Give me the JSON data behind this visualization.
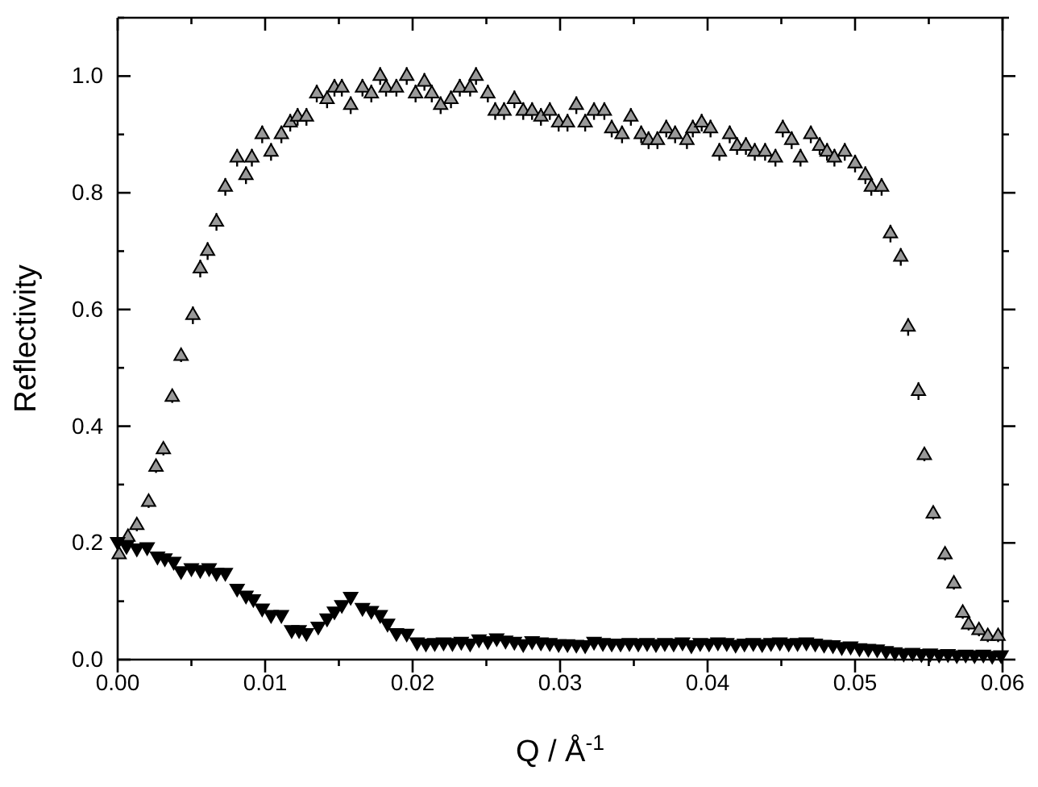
{
  "chart_data": {
    "type": "scatter",
    "xlabel": "Q / Å$^{-1}$",
    "ylabel": "Reflectivity",
    "xlim": [
      0,
      0.06
    ],
    "ylim": [
      0,
      1.1
    ],
    "xticks": [
      {
        "value": 0,
        "label": "0.00"
      },
      {
        "value": 0.005,
        "label": null
      },
      {
        "value": 0.01,
        "label": "0.01"
      },
      {
        "value": 0.015,
        "label": null
      },
      {
        "value": 0.02,
        "label": "0.02"
      },
      {
        "value": 0.025,
        "label": null
      },
      {
        "value": 0.03,
        "label": "0.03"
      },
      {
        "value": 0.035,
        "label": null
      },
      {
        "value": 0.04,
        "label": "0.04"
      },
      {
        "value": 0.045,
        "label": null
      },
      {
        "value": 0.05,
        "label": "0.05"
      },
      {
        "value": 0.055,
        "label": null
      },
      {
        "value": 0.06,
        "label": "0.06"
      }
    ],
    "yticks": [
      {
        "value": 0,
        "label": "0.0"
      },
      {
        "value": 0.1,
        "label": null
      },
      {
        "value": 0.2,
        "label": "0.2"
      },
      {
        "value": 0.3,
        "label": null
      },
      {
        "value": 0.4,
        "label": "0.4"
      },
      {
        "value": 0.5,
        "label": null
      },
      {
        "value": 0.6,
        "label": "0.6"
      },
      {
        "value": 0.7,
        "label": null
      },
      {
        "value": 0.8,
        "label": "0.8"
      },
      {
        "value": 0.9,
        "label": null
      },
      {
        "value": 1.0,
        "label": "1.0"
      },
      {
        "value": 1.1,
        "label": null
      }
    ],
    "grid": false,
    "series": [
      {
        "color": "#999999",
        "marker": "triangle",
        "x": [
          0.0001,
          0.0007,
          0.0013,
          0.0021,
          0.0026,
          0.0031,
          0.0037,
          0.0043,
          0.0051,
          0.0056,
          0.0061,
          0.0067,
          0.0073,
          0.0081,
          0.0087,
          0.0091,
          0.0098,
          0.0104,
          0.0111,
          0.0117,
          0.0122,
          0.0128,
          0.0135,
          0.0142,
          0.0147,
          0.0152,
          0.0158,
          0.0166,
          0.0172,
          0.0178,
          0.0182,
          0.0189,
          0.0196,
          0.0202,
          0.0208,
          0.0213,
          0.0219,
          0.0226,
          0.0232,
          0.0239,
          0.0243,
          0.0251,
          0.0256,
          0.0262,
          0.0269,
          0.0275,
          0.0281,
          0.0287,
          0.0293,
          0.0299,
          0.0305,
          0.0311,
          0.0317,
          0.0323,
          0.033,
          0.0335,
          0.0342,
          0.0348,
          0.0355,
          0.036,
          0.0366,
          0.0372,
          0.0378,
          0.0386,
          0.039,
          0.0396,
          0.0402,
          0.0408,
          0.0415,
          0.042,
          0.0426,
          0.0432,
          0.0439,
          0.0446,
          0.0451,
          0.0457,
          0.0463,
          0.047,
          0.0476,
          0.0481,
          0.0486,
          0.0493,
          0.05,
          0.0507,
          0.0511,
          0.0518,
          0.0524,
          0.0531,
          0.0536,
          0.0543,
          0.0547,
          0.0553,
          0.0561,
          0.0567,
          0.0573,
          0.0577,
          0.0584,
          0.059,
          0.0597
        ],
        "values": [
          0.18,
          0.21,
          0.23,
          0.27,
          0.33,
          0.36,
          0.45,
          0.52,
          0.59,
          0.67,
          0.7,
          0.75,
          0.81,
          0.86,
          0.83,
          0.86,
          0.9,
          0.87,
          0.9,
          0.92,
          0.93,
          0.93,
          0.97,
          0.96,
          0.98,
          0.98,
          0.95,
          0.98,
          0.97,
          1.0,
          0.98,
          0.98,
          1.0,
          0.97,
          0.99,
          0.97,
          0.95,
          0.96,
          0.98,
          0.98,
          1.0,
          0.97,
          0.94,
          0.94,
          0.96,
          0.94,
          0.94,
          0.93,
          0.94,
          0.92,
          0.92,
          0.95,
          0.92,
          0.94,
          0.94,
          0.91,
          0.9,
          0.93,
          0.9,
          0.89,
          0.89,
          0.91,
          0.9,
          0.89,
          0.91,
          0.92,
          0.91,
          0.87,
          0.9,
          0.88,
          0.88,
          0.87,
          0.87,
          0.86,
          0.91,
          0.89,
          0.86,
          0.9,
          0.88,
          0.87,
          0.86,
          0.87,
          0.85,
          0.83,
          0.81,
          0.81,
          0.73,
          0.69,
          0.57,
          0.46,
          0.35,
          0.25,
          0.18,
          0.13,
          0.08,
          0.06,
          0.05,
          0.04,
          0.04
        ],
        "errors": [
          null,
          0.01,
          0.01,
          0.01,
          0.01,
          0.01,
          0.01,
          0.01,
          0.015,
          0.015,
          0.015,
          0.015,
          0.015,
          0.015,
          0.015,
          0.015,
          0.015,
          0.015,
          0.015,
          0.015,
          0.015,
          0.015,
          0.015,
          0.015,
          0.015,
          0.015,
          0.015,
          0.015,
          0.015,
          0.015,
          0.015,
          0.015,
          0.015,
          0.015,
          0.015,
          0.015,
          0.015,
          0.015,
          0.015,
          0.015,
          0.015,
          0.015,
          0.015,
          0.015,
          0.015,
          0.015,
          0.015,
          0.015,
          0.015,
          0.015,
          0.015,
          0.015,
          0.015,
          0.015,
          0.015,
          0.015,
          0.015,
          0.015,
          0.015,
          0.015,
          0.015,
          0.015,
          0.015,
          0.015,
          0.015,
          0.015,
          0.015,
          0.015,
          0.015,
          0.015,
          0.015,
          0.015,
          0.015,
          0.015,
          0.015,
          0.015,
          0.015,
          0.015,
          0.015,
          0.015,
          0.015,
          0.015,
          0.015,
          0.015,
          0.015,
          0.015,
          0.015,
          0.015,
          0.015,
          0.015,
          0.01,
          0.01,
          0.01,
          0.01,
          0.01,
          0.01,
          0.01,
          0.01,
          0.01
        ]
      },
      {
        "color": "#000000",
        "marker": "triangle-down",
        "x": [
          0.0,
          0.0006,
          0.0013,
          0.002,
          0.0027,
          0.0032,
          0.0038,
          0.0043,
          0.005,
          0.0056,
          0.0062,
          0.0067,
          0.0073,
          0.0081,
          0.0087,
          0.0092,
          0.0098,
          0.0104,
          0.0111,
          0.0118,
          0.0123,
          0.0128,
          0.0136,
          0.0142,
          0.0147,
          0.0152,
          0.0158,
          0.0166,
          0.0172,
          0.0178,
          0.0183,
          0.0189,
          0.0196,
          0.0203,
          0.0209,
          0.0215,
          0.0221,
          0.0227,
          0.0233,
          0.0239,
          0.0245,
          0.0251,
          0.0257,
          0.0263,
          0.0269,
          0.0275,
          0.0281,
          0.0287,
          0.0293,
          0.0299,
          0.0305,
          0.0311,
          0.0317,
          0.0323,
          0.0329,
          0.0335,
          0.0341,
          0.0347,
          0.0353,
          0.0359,
          0.0365,
          0.0371,
          0.0377,
          0.0383,
          0.0389,
          0.0395,
          0.0401,
          0.0407,
          0.0413,
          0.0419,
          0.0425,
          0.0431,
          0.0437,
          0.0443,
          0.0449,
          0.0455,
          0.0461,
          0.0467,
          0.0473,
          0.0479,
          0.0485,
          0.0491,
          0.0497,
          0.0503,
          0.0509,
          0.0515,
          0.0521,
          0.0527,
          0.0533,
          0.0539,
          0.0545,
          0.0551,
          0.0557,
          0.0563,
          0.0569,
          0.0575,
          0.0581,
          0.0587,
          0.0593,
          0.0599
        ],
        "values": [
          0.202,
          0.195,
          0.191,
          0.193,
          0.177,
          0.174,
          0.168,
          0.152,
          0.157,
          0.154,
          0.157,
          0.149,
          0.149,
          0.122,
          0.11,
          0.104,
          0.088,
          0.077,
          0.077,
          0.051,
          0.051,
          0.046,
          0.057,
          0.071,
          0.083,
          0.094,
          0.108,
          0.089,
          0.084,
          0.077,
          0.062,
          0.046,
          0.045,
          0.03,
          0.028,
          0.029,
          0.03,
          0.029,
          0.031,
          0.028,
          0.035,
          0.032,
          0.037,
          0.033,
          0.031,
          0.027,
          0.032,
          0.03,
          0.029,
          0.027,
          0.027,
          0.026,
          0.025,
          0.031,
          0.029,
          0.028,
          0.028,
          0.029,
          0.028,
          0.029,
          0.027,
          0.029,
          0.028,
          0.03,
          0.025,
          0.029,
          0.028,
          0.03,
          0.029,
          0.026,
          0.028,
          0.029,
          0.027,
          0.029,
          0.03,
          0.028,
          0.029,
          0.03,
          0.028,
          0.026,
          0.025,
          0.022,
          0.023,
          0.02,
          0.019,
          0.018,
          0.015,
          0.013,
          0.011,
          0.012,
          0.01,
          0.011,
          0.009,
          0.01,
          0.008,
          0.009,
          0.008,
          0.009,
          0.007,
          0.008
        ]
      }
    ]
  }
}
